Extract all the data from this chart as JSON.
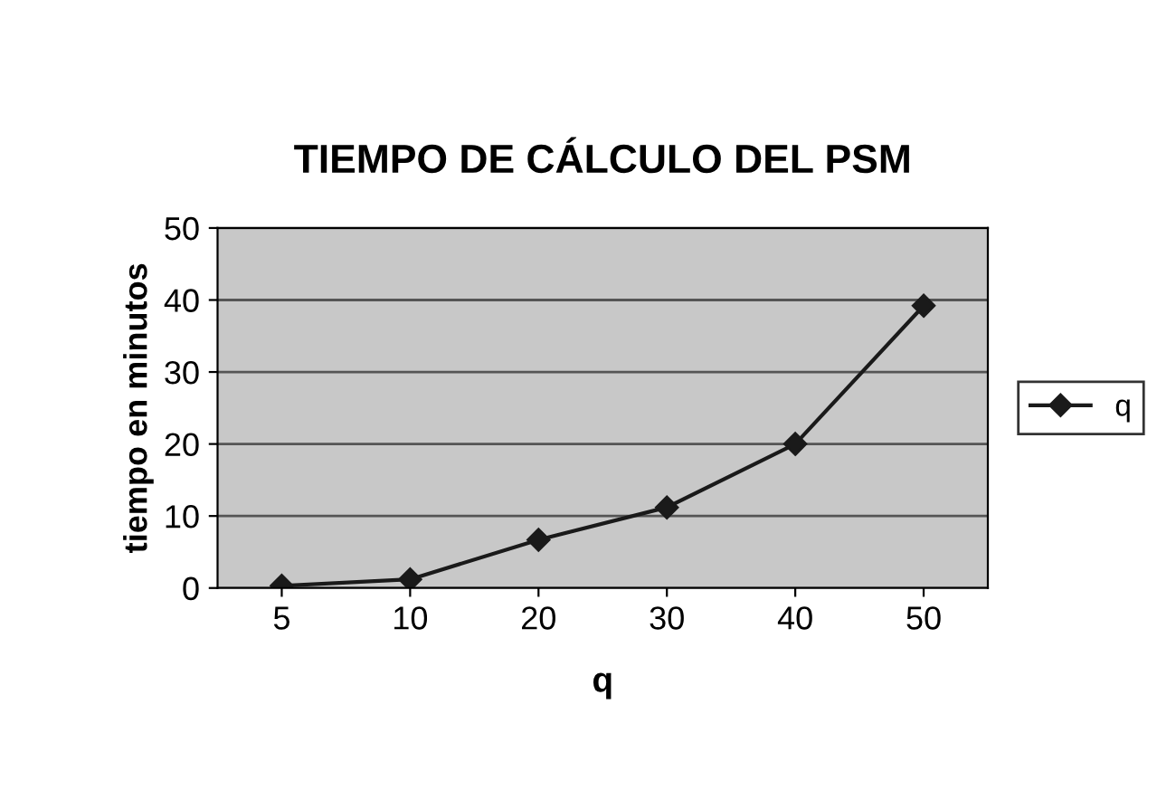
{
  "chart_data": {
    "type": "line",
    "title": "TIEMPO DE CÁLCULO DEL PSM",
    "xlabel": "q",
    "ylabel": "tiempo en minutos",
    "categories": [
      "5",
      "10",
      "20",
      "30",
      "40",
      "50"
    ],
    "series": [
      {
        "name": "q",
        "color": "#1a1a1a",
        "values": [
          0.3,
          1.2,
          6.7,
          11.2,
          20,
          39.2
        ]
      }
    ],
    "ylim": [
      0,
      50
    ],
    "yticks": [
      0,
      10,
      20,
      30,
      40,
      50
    ],
    "grid": "y",
    "legend": "right",
    "marker": "diamond",
    "line_style": "solid"
  }
}
